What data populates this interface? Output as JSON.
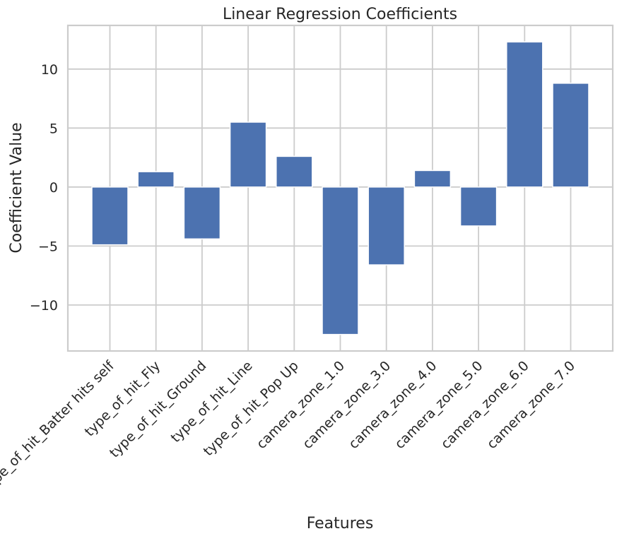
{
  "chart_data": {
    "type": "bar",
    "title": "Linear Regression Coefficients",
    "xlabel": "Features",
    "ylabel": "Coefficient Value",
    "categories": [
      "type_of_hit_Batter hits self",
      "type_of_hit_Fly",
      "type_of_hit_Ground",
      "type_of_hit_Line",
      "type_of_hit_Pop Up",
      "camera_zone_1.0",
      "camera_zone_3.0",
      "camera_zone_4.0",
      "camera_zone_5.0",
      "camera_zone_6.0",
      "camera_zone_7.0"
    ],
    "values": [
      -4.9,
      1.3,
      -4.4,
      5.5,
      2.6,
      -12.5,
      -6.6,
      1.4,
      -3.3,
      12.3,
      8.8
    ],
    "ylim": [
      -13.9,
      13.7
    ],
    "yticks": [
      -10,
      -5,
      0,
      5,
      10
    ],
    "ytick_labels": [
      "−10",
      "−5",
      "0",
      "5",
      "10"
    ],
    "bar_color": "#4c72b0",
    "grid": true
  }
}
